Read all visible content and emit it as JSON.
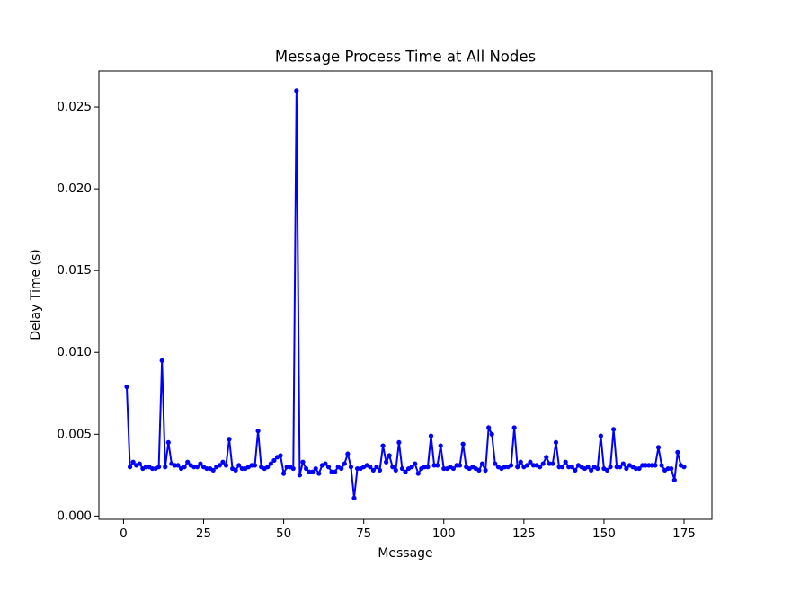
{
  "chart_data": {
    "type": "line",
    "title": "Message Process Time at All Nodes",
    "x_label": "Message",
    "y_label": "Delay Time (s)",
    "x": [
      1,
      2,
      3,
      4,
      5,
      6,
      7,
      8,
      9,
      10,
      11,
      12,
      13,
      14,
      15,
      16,
      17,
      18,
      19,
      20,
      21,
      22,
      23,
      24,
      25,
      26,
      27,
      28,
      29,
      30,
      31,
      32,
      33,
      34,
      35,
      36,
      37,
      38,
      39,
      40,
      41,
      42,
      43,
      44,
      45,
      46,
      47,
      48,
      49,
      50,
      51,
      52,
      53,
      54,
      55,
      56,
      57,
      58,
      59,
      60,
      61,
      62,
      63,
      64,
      65,
      66,
      67,
      68,
      69,
      70,
      71,
      72,
      73,
      74,
      75,
      76,
      77,
      78,
      79,
      80,
      81,
      82,
      83,
      84,
      85,
      86,
      87,
      88,
      89,
      90,
      91,
      92,
      93,
      94,
      95,
      96,
      97,
      98,
      99,
      100,
      101,
      102,
      103,
      104,
      105,
      106,
      107,
      108,
      109,
      110,
      111,
      112,
      113,
      114,
      115,
      116,
      117,
      118,
      119,
      120,
      121,
      122,
      123,
      124,
      125,
      126,
      127,
      128,
      129,
      130,
      131,
      132,
      133,
      134,
      135,
      136,
      137,
      138,
      139,
      140,
      141,
      142,
      143,
      144,
      145,
      146,
      147,
      148,
      149,
      150,
      151,
      152,
      153,
      154,
      155,
      156,
      157,
      158,
      159,
      160,
      161,
      162,
      163,
      164,
      165,
      166,
      167,
      168,
      169,
      170,
      171,
      172,
      173,
      174,
      175
    ],
    "series": [
      {
        "name": "Delay Time",
        "color": "#0000ff",
        "values": [
          0.0079,
          0.003,
          0.0033,
          0.0031,
          0.0032,
          0.0029,
          0.003,
          0.003,
          0.0029,
          0.0029,
          0.003,
          0.0095,
          0.003,
          0.0045,
          0.0032,
          0.0031,
          0.0031,
          0.0029,
          0.003,
          0.0033,
          0.0031,
          0.003,
          0.003,
          0.0032,
          0.003,
          0.0029,
          0.0029,
          0.0028,
          0.003,
          0.0031,
          0.0033,
          0.0031,
          0.0047,
          0.0029,
          0.0028,
          0.0031,
          0.0029,
          0.0029,
          0.003,
          0.0031,
          0.0031,
          0.0052,
          0.003,
          0.0029,
          0.003,
          0.0032,
          0.0034,
          0.0036,
          0.0037,
          0.0026,
          0.003,
          0.003,
          0.0029,
          0.026,
          0.0025,
          0.0033,
          0.0029,
          0.0027,
          0.0027,
          0.0029,
          0.0026,
          0.0031,
          0.0032,
          0.003,
          0.0027,
          0.0027,
          0.003,
          0.0029,
          0.0032,
          0.0038,
          0.003,
          0.0011,
          0.0029,
          0.0029,
          0.003,
          0.0031,
          0.003,
          0.0028,
          0.003,
          0.0028,
          0.0043,
          0.0033,
          0.0037,
          0.003,
          0.0028,
          0.0045,
          0.0029,
          0.0027,
          0.0029,
          0.003,
          0.0032,
          0.0026,
          0.0029,
          0.003,
          0.003,
          0.0049,
          0.0031,
          0.0031,
          0.0043,
          0.0029,
          0.0029,
          0.003,
          0.0029,
          0.0031,
          0.0031,
          0.0044,
          0.003,
          0.0029,
          0.003,
          0.0029,
          0.0028,
          0.0032,
          0.0028,
          0.0054,
          0.005,
          0.0032,
          0.003,
          0.0029,
          0.003,
          0.003,
          0.0031,
          0.0054,
          0.003,
          0.0033,
          0.003,
          0.0031,
          0.0033,
          0.0031,
          0.0031,
          0.003,
          0.0032,
          0.0036,
          0.0032,
          0.0032,
          0.0045,
          0.003,
          0.003,
          0.0033,
          0.003,
          0.003,
          0.0028,
          0.0031,
          0.003,
          0.0029,
          0.003,
          0.0028,
          0.003,
          0.0029,
          0.0049,
          0.0029,
          0.0028,
          0.003,
          0.0053,
          0.003,
          0.003,
          0.0032,
          0.0029,
          0.0031,
          0.003,
          0.0029,
          0.0029,
          0.0031,
          0.0031,
          0.0031,
          0.0031,
          0.0031,
          0.0042,
          0.0031,
          0.0028,
          0.0029,
          0.0029,
          0.0022,
          0.0039,
          0.0031,
          0.003
        ]
      }
    ],
    "xlim": [
      -7.7,
      183.7
    ],
    "ylim": [
      -0.0002,
      0.0272
    ],
    "xticks": [
      0,
      25,
      50,
      75,
      100,
      125,
      150,
      175
    ],
    "yticks": [
      {
        "value": 0,
        "label": "0.000"
      },
      {
        "value": 0.005,
        "label": "0.005"
      },
      {
        "value": 0.01,
        "label": "0.010"
      },
      {
        "value": 0.015,
        "label": "0.015"
      },
      {
        "value": 0.02,
        "label": "0.020"
      },
      {
        "value": 0.025,
        "label": "0.025"
      }
    ],
    "grid": false
  }
}
